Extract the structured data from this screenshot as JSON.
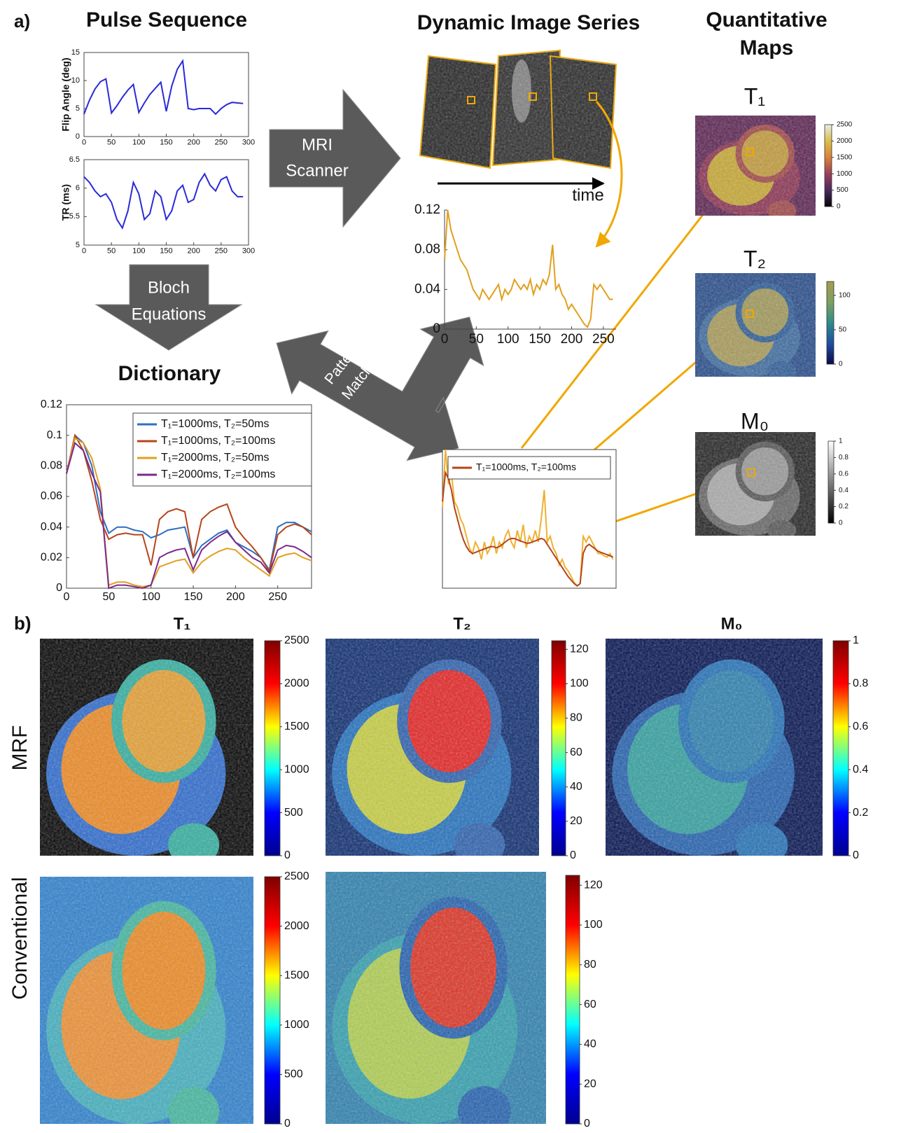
{
  "panel_a": {
    "label": "a)",
    "pulse_sequence_title": "Pulse Sequence",
    "dynamic_title": "Dynamic Image Series",
    "quantitative_title": [
      "Quantitative",
      "Maps"
    ],
    "dictionary_title": "Dictionary",
    "mri_arrow": [
      "MRI",
      "Scanner"
    ],
    "bloch_arrow": [
      "Bloch",
      "Equations"
    ],
    "pattern_arrow": [
      "Pattern",
      "Matching"
    ],
    "time_label": "time",
    "maps": [
      {
        "title": "T₁",
        "colorbar": {
          "lim": [
            0,
            2500
          ],
          "ticks": [
            0,
            500,
            1000,
            1500,
            2000,
            2500
          ],
          "colors": [
            "#050505",
            "#4a2a5e",
            "#9c3f5a",
            "#d9823a",
            "#d9c048",
            "#e8ecea"
          ]
        }
      },
      {
        "title": "T₂",
        "colorbar": {
          "lim": [
            0,
            120
          ],
          "ticks": [
            0,
            50,
            100
          ],
          "colors": [
            "#0a0a4a",
            "#1f4fa0",
            "#2e8c8c",
            "#7fa060",
            "#a89a50"
          ]
        }
      },
      {
        "title": "M₀",
        "colorbar": {
          "lim": [
            0,
            1
          ],
          "ticks": [
            0,
            0.2,
            0.4,
            0.6,
            0.8,
            1
          ],
          "colors": [
            "#000000",
            "#ffffff"
          ]
        }
      }
    ]
  },
  "panel_b": {
    "label": "b)",
    "columns": [
      "T₁",
      "T₂",
      "M₀"
    ],
    "rows": [
      "MRF",
      "Conventional"
    ],
    "colorbars": [
      {
        "lim": [
          0,
          2500
        ],
        "ticks": [
          0,
          500,
          1000,
          1500,
          2000,
          2500
        ],
        "colors": [
          "#00008f",
          "#0000ff",
          "#00ffff",
          "#ffff00",
          "#ff0000",
          "#800000"
        ]
      },
      {
        "lim": [
          0,
          125
        ],
        "ticks": [
          0,
          20,
          40,
          60,
          80,
          100,
          120
        ],
        "colors": [
          "#00008f",
          "#0000ff",
          "#00ffff",
          "#ffff00",
          "#ff0000",
          "#800000"
        ]
      },
      {
        "lim": [
          0,
          1
        ],
        "ticks": [
          0,
          0.2,
          0.4,
          0.6,
          0.8,
          1
        ],
        "colors": [
          "#00008f",
          "#0000ff",
          "#00ffff",
          "#ffff00",
          "#ff0000",
          "#800000"
        ]
      },
      {
        "lim": [
          0,
          2500
        ],
        "ticks": [
          0,
          500,
          1000,
          1500,
          2000,
          2500
        ],
        "colors": [
          "#00008f",
          "#0000ff",
          "#00ffff",
          "#ffff00",
          "#ff0000",
          "#800000"
        ]
      },
      {
        "lim": [
          0,
          125
        ],
        "ticks": [
          0,
          20,
          40,
          60,
          80,
          100,
          120
        ],
        "colors": [
          "#00008f",
          "#0000ff",
          "#00ffff",
          "#ffff00",
          "#ff0000",
          "#800000"
        ]
      }
    ]
  },
  "chart_data": [
    {
      "type": "line",
      "y_label": "Flip Angle (deg)",
      "box": true,
      "x": [
        0,
        10,
        20,
        30,
        40,
        50,
        60,
        70,
        80,
        90,
        100,
        110,
        120,
        130,
        140,
        150,
        160,
        170,
        180,
        190,
        200,
        210,
        220,
        230,
        240,
        250,
        260,
        270,
        280,
        290
      ],
      "series": [
        {
          "color": "#2a2ad8",
          "values": [
            4,
            6.5,
            8.5,
            9.8,
            10.3,
            4.2,
            5.5,
            7,
            8.3,
            9.3,
            4.3,
            6,
            7.5,
            8.6,
            9.7,
            4.5,
            9,
            12,
            13.5,
            5,
            4.8,
            5,
            5,
            5,
            4,
            5,
            5.7,
            6.1,
            6,
            5.9
          ]
        }
      ],
      "xlim": [
        0,
        300
      ],
      "xticks": [
        0,
        50,
        100,
        150,
        200,
        250,
        300
      ],
      "ylim": [
        0,
        15
      ],
      "yticks": [
        0,
        5,
        10,
        15
      ]
    },
    {
      "type": "line",
      "y_label": "TR (ms)",
      "box": true,
      "x": [
        0,
        10,
        20,
        30,
        40,
        50,
        60,
        70,
        80,
        90,
        100,
        110,
        120,
        130,
        140,
        150,
        160,
        170,
        180,
        190,
        200,
        210,
        220,
        230,
        240,
        250,
        260,
        270,
        280,
        290
      ],
      "series": [
        {
          "color": "#2a2ad8",
          "values": [
            6.2,
            6.1,
            5.95,
            5.85,
            5.9,
            5.75,
            5.45,
            5.3,
            5.6,
            6.1,
            5.9,
            5.45,
            5.55,
            5.95,
            5.85,
            5.45,
            5.6,
            5.95,
            6.05,
            5.75,
            5.8,
            6.1,
            6.25,
            6.05,
            5.95,
            6.15,
            6.2,
            5.95,
            5.85,
            5.85
          ]
        }
      ],
      "xlim": [
        0,
        300
      ],
      "xticks": [
        0,
        50,
        100,
        150,
        200,
        250,
        300
      ],
      "ylim": [
        5,
        6.5
      ],
      "yticks": [
        5,
        5.5,
        6,
        6.5
      ]
    },
    {
      "type": "line",
      "box": false,
      "x": [
        0,
        5,
        10,
        15,
        20,
        25,
        30,
        35,
        40,
        45,
        50,
        55,
        60,
        65,
        70,
        75,
        80,
        85,
        90,
        95,
        100,
        105,
        110,
        115,
        120,
        125,
        130,
        135,
        140,
        145,
        150,
        155,
        160,
        165,
        170,
        175,
        180,
        185,
        190,
        195,
        200,
        205,
        210,
        215,
        220,
        225,
        230,
        235,
        240,
        245,
        250,
        255,
        260,
        265
      ],
      "series": [
        {
          "color": "#e0a020",
          "values": [
            0.07,
            0.12,
            0.1,
            0.09,
            0.08,
            0.07,
            0.065,
            0.06,
            0.05,
            0.04,
            0.035,
            0.03,
            0.04,
            0.035,
            0.03,
            0.035,
            0.04,
            0.045,
            0.03,
            0.04,
            0.035,
            0.04,
            0.05,
            0.045,
            0.04,
            0.045,
            0.04,
            0.05,
            0.035,
            0.045,
            0.04,
            0.05,
            0.045,
            0.055,
            0.085,
            0.04,
            0.045,
            0.035,
            0.03,
            0.02,
            0.025,
            0.02,
            0.015,
            0.01,
            0.005,
            0.002,
            0.01,
            0.045,
            0.04,
            0.045,
            0.04,
            0.035,
            0.03,
            0.03
          ]
        }
      ],
      "xlim": [
        0,
        270
      ],
      "xticks": [
        0,
        50,
        100,
        150,
        200,
        250
      ],
      "ylim": [
        0,
        0.12
      ],
      "yticks": [
        0,
        0.04,
        0.08,
        0.12
      ]
    },
    {
      "type": "line",
      "box": true,
      "x": [
        0,
        10,
        20,
        30,
        40,
        50,
        60,
        70,
        80,
        90,
        100,
        110,
        120,
        130,
        140,
        150,
        160,
        170,
        180,
        190,
        200,
        210,
        220,
        230,
        240,
        250,
        260,
        270,
        280,
        290
      ],
      "series": [
        {
          "name": "T₁=1000ms, T₂=50ms",
          "color": "#2f6fc0",
          "values": [
            0.075,
            0.1,
            0.095,
            0.08,
            0.05,
            0.036,
            0.04,
            0.04,
            0.038,
            0.037,
            0.033,
            0.035,
            0.038,
            0.039,
            0.04,
            0.02,
            0.028,
            0.032,
            0.036,
            0.038,
            0.03,
            0.027,
            0.024,
            0.02,
            0.012,
            0.04,
            0.043,
            0.043,
            0.04,
            0.037
          ]
        },
        {
          "name": "T₁=1000ms, T₂=100ms",
          "color": "#b5451b",
          "values": [
            0.075,
            0.1,
            0.09,
            0.07,
            0.045,
            0.032,
            0.035,
            0.036,
            0.035,
            0.035,
            0.015,
            0.045,
            0.05,
            0.052,
            0.05,
            0.02,
            0.045,
            0.05,
            0.053,
            0.055,
            0.04,
            0.033,
            0.027,
            0.02,
            0.011,
            0.035,
            0.04,
            0.042,
            0.04,
            0.035
          ]
        },
        {
          "name": "T₁=2000ms, T₂=50ms",
          "color": "#e0a020",
          "values": [
            0.075,
            0.098,
            0.095,
            0.085,
            0.065,
            0.002,
            0.004,
            0.004,
            0.002,
            0.001,
            0.002,
            0.014,
            0.016,
            0.018,
            0.019,
            0.01,
            0.017,
            0.021,
            0.024,
            0.026,
            0.025,
            0.02,
            0.016,
            0.012,
            0.008,
            0.02,
            0.022,
            0.023,
            0.02,
            0.018
          ]
        },
        {
          "name": "T₁=2000ms, T₂=100ms",
          "color": "#7a2a8c",
          "values": [
            0.075,
            0.095,
            0.09,
            0.075,
            0.063,
            0,
            0.002,
            0.002,
            0.001,
            0,
            0.002,
            0.02,
            0.023,
            0.025,
            0.026,
            0.012,
            0.025,
            0.03,
            0.034,
            0.037,
            0.03,
            0.025,
            0.02,
            0.017,
            0.01,
            0.025,
            0.028,
            0.027,
            0.024,
            0.02
          ]
        }
      ],
      "xlim": [
        0,
        290
      ],
      "xticks": [
        0,
        50,
        100,
        150,
        200,
        250
      ],
      "ylim": [
        0,
        0.12
      ],
      "yticks": [
        0,
        0.02,
        0.04,
        0.06,
        0.08,
        0.1,
        0.12
      ]
    },
    {
      "type": "line",
      "box": true,
      "x": [
        0,
        5,
        10,
        15,
        20,
        25,
        30,
        35,
        40,
        45,
        50,
        55,
        60,
        65,
        70,
        75,
        80,
        85,
        90,
        95,
        100,
        105,
        110,
        115,
        120,
        125,
        130,
        135,
        140,
        145,
        150,
        155,
        160,
        165,
        170,
        175,
        180,
        185,
        190,
        195,
        200,
        205,
        210,
        215,
        220,
        225,
        230,
        235,
        240,
        245,
        250,
        255,
        260,
        265,
        270,
        275,
        280,
        285
      ],
      "series": [
        {
          "color": "#f0b030",
          "values": [
            0.07,
            0.12,
            0.09,
            0.1,
            0.075,
            0.07,
            0.06,
            0.055,
            0.045,
            0.035,
            0.03,
            0.04,
            0.035,
            0.025,
            0.04,
            0.03,
            0.035,
            0.045,
            0.03,
            0.04,
            0.035,
            0.045,
            0.05,
            0.04,
            0.035,
            0.05,
            0.04,
            0.055,
            0.035,
            0.045,
            0.04,
            0.05,
            0.04,
            0.06,
            0.085,
            0.04,
            0.045,
            0.035,
            0.03,
            0.02,
            0.025,
            0.018,
            0.015,
            0.01,
            0.005,
            0.002,
            0.004,
            0.045,
            0.04,
            0.045,
            0.04,
            0.035,
            0.03,
            0.03,
            0.028,
            0.027,
            0.03,
            0.025
          ]
        },
        {
          "name": "T₁=1000ms, T₂=100ms",
          "color": "#b5451b",
          "values": [
            0.075,
            0.1,
            0.095,
            0.085,
            0.07,
            0.06,
            0.05,
            0.042,
            0.036,
            0.032,
            0.03,
            0.031,
            0.032,
            0.033,
            0.034,
            0.035,
            0.036,
            0.036,
            0.035,
            0.036,
            0.038,
            0.04,
            0.042,
            0.043,
            0.043,
            0.042,
            0.041,
            0.04,
            0.039,
            0.039,
            0.04,
            0.041,
            0.042,
            0.043,
            0.042,
            0.038,
            0.034,
            0.03,
            0.026,
            0.022,
            0.018,
            0.014,
            0.01,
            0.007,
            0.004,
            0.002,
            0.004,
            0.03,
            0.036,
            0.038,
            0.036,
            0.034,
            0.032,
            0.031,
            0.03,
            0.029,
            0.028,
            0.027
          ]
        }
      ],
      "xlim": [
        0,
        290
      ],
      "ylim": [
        0,
        0.12
      ]
    }
  ]
}
